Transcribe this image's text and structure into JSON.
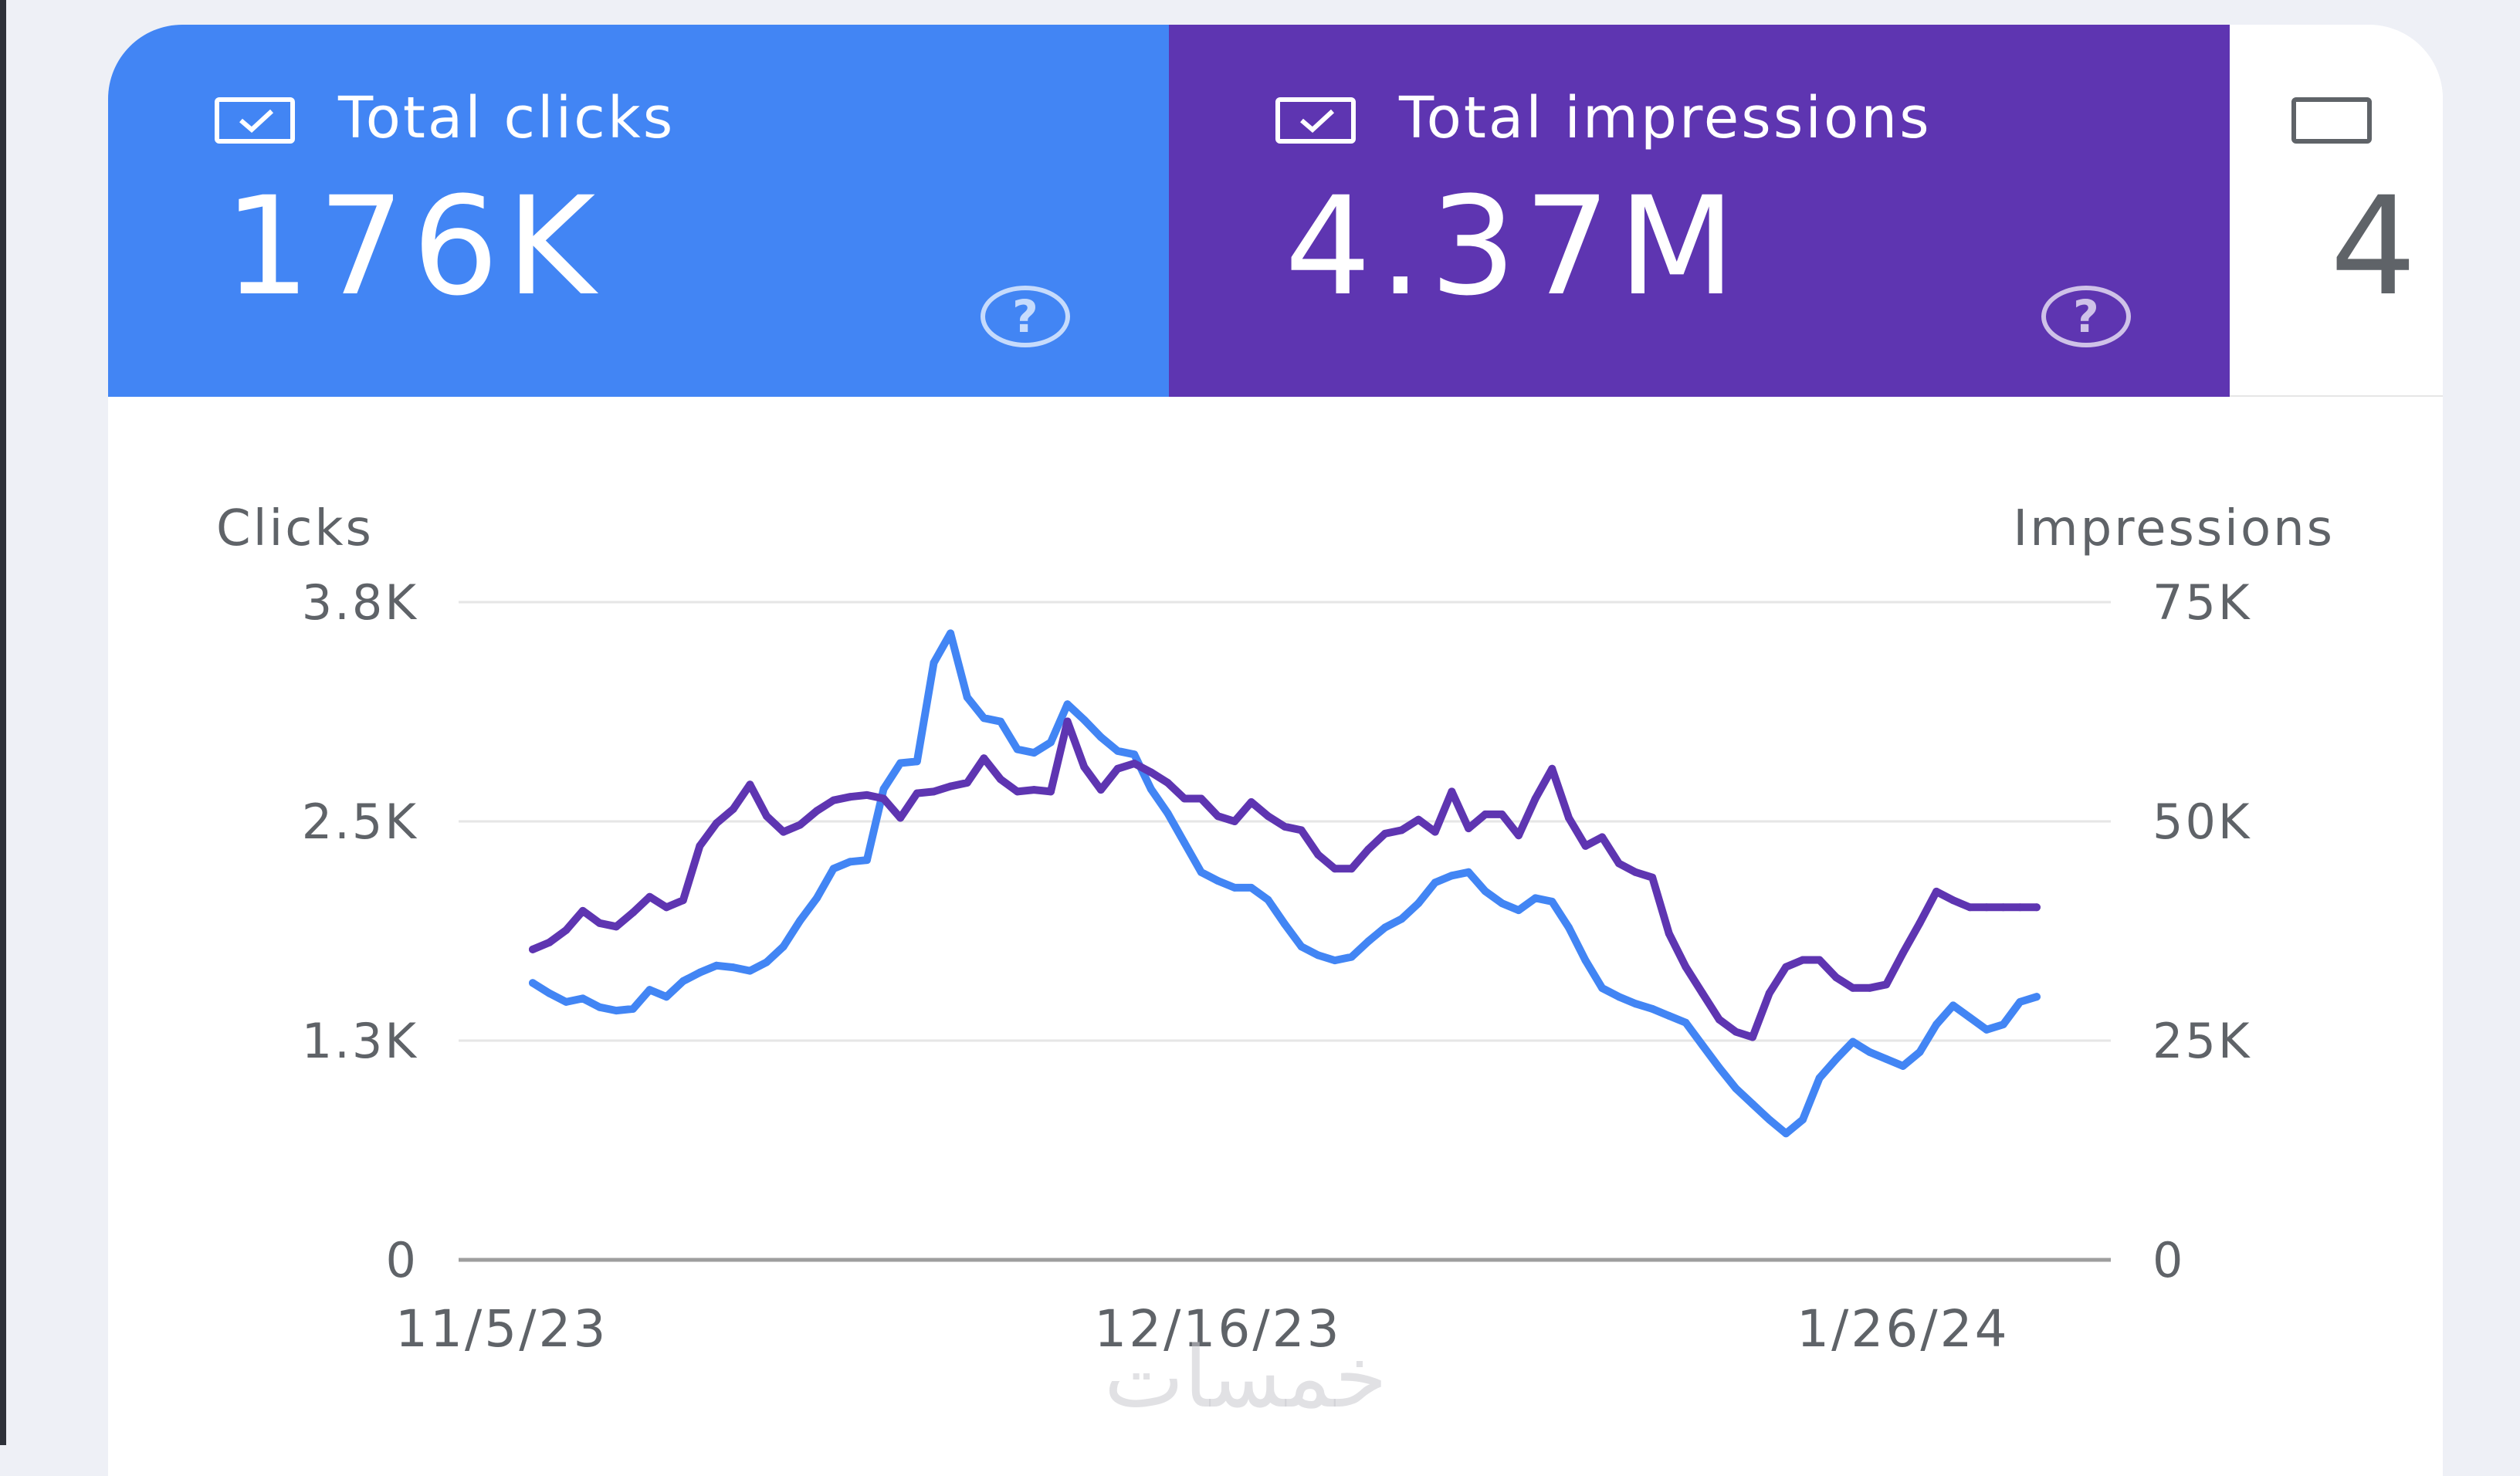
{
  "tiles": {
    "clicks": {
      "label": "Total clicks",
      "value": "176K",
      "checked": true,
      "color": "#4285f4"
    },
    "impressions": {
      "label": "Total impressions",
      "value": "4.37M",
      "checked": true,
      "color": "#5e35b1"
    },
    "ctr": {
      "label": "",
      "value": "4",
      "checked": false
    }
  },
  "help_symbol": "?",
  "watermark": "خمسات",
  "chart_data": {
    "type": "line",
    "x": [
      "11/5/23",
      "11/6/23",
      "11/7/23",
      "11/8/23",
      "11/9/23",
      "11/10/23",
      "11/11/23",
      "11/12/23",
      "11/13/23",
      "11/14/23",
      "11/15/23",
      "11/16/23",
      "11/17/23",
      "11/18/23",
      "11/19/23",
      "11/20/23",
      "11/21/23",
      "11/22/23",
      "11/23/23",
      "11/24/23",
      "11/25/23",
      "11/26/23",
      "11/27/23",
      "11/28/23",
      "11/29/23",
      "11/30/23",
      "12/1/23",
      "12/2/23",
      "12/3/23",
      "12/4/23",
      "12/5/23",
      "12/6/23",
      "12/7/23",
      "12/8/23",
      "12/9/23",
      "12/10/23",
      "12/11/23",
      "12/12/23",
      "12/13/23",
      "12/14/23",
      "12/15/23",
      "12/16/23",
      "12/17/23",
      "12/18/23",
      "12/19/23",
      "12/20/23",
      "12/21/23",
      "12/22/23",
      "12/23/23",
      "12/24/23",
      "12/25/23",
      "12/26/23",
      "12/27/23",
      "12/28/23",
      "12/29/23",
      "12/30/23",
      "12/31/23",
      "1/1/24",
      "1/2/24",
      "1/3/24",
      "1/4/24",
      "1/5/24",
      "1/6/24",
      "1/7/24",
      "1/8/24",
      "1/9/24",
      "1/10/24",
      "1/11/24",
      "1/12/24",
      "1/13/24",
      "1/14/24",
      "1/15/24",
      "1/16/24",
      "1/17/24",
      "1/18/24",
      "1/19/24",
      "1/20/24",
      "1/21/24",
      "1/22/24",
      "1/23/24",
      "1/24/24",
      "1/25/24",
      "1/26/24",
      "1/27/24",
      "1/28/24",
      "1/29/24",
      "1/30/24",
      "1/31/24",
      "2/1/24",
      "2/2/24",
      "2/3/24"
    ],
    "x_ticks": [
      "11/5/23",
      "12/16/23",
      "1/26/24"
    ],
    "y_left": {
      "label": "Clicks",
      "ticks": [
        "0",
        "1.3K",
        "2.5K",
        "3.8K"
      ],
      "max": 3800
    },
    "y_right": {
      "label": "Impressions",
      "ticks": [
        "0",
        "25K",
        "50K",
        "75K"
      ],
      "max": 75000
    },
    "grid": true,
    "series": [
      {
        "name": "Clicks",
        "axis": "left",
        "color": "#4285f4",
        "values": [
          1600,
          1540,
          1490,
          1510,
          1460,
          1440,
          1450,
          1560,
          1520,
          1610,
          1660,
          1700,
          1690,
          1670,
          1720,
          1810,
          1960,
          2090,
          2260,
          2300,
          2310,
          2720,
          2870,
          2880,
          3450,
          3620,
          3250,
          3130,
          3110,
          2950,
          2930,
          2990,
          3210,
          3120,
          3020,
          2940,
          2920,
          2720,
          2580,
          2410,
          2240,
          2190,
          2150,
          2150,
          2080,
          1940,
          1810,
          1760,
          1730,
          1750,
          1840,
          1920,
          1970,
          2060,
          2180,
          2220,
          2240,
          2130,
          2060,
          2020,
          2090,
          2070,
          1920,
          1730,
          1570,
          1520,
          1480,
          1450,
          1410,
          1370,
          1240,
          1110,
          990,
          900,
          810,
          730,
          810,
          1050,
          1160,
          1260,
          1200,
          1160,
          1120,
          1200,
          1360,
          1470,
          1400,
          1330,
          1360,
          1490,
          1520
        ]
      },
      {
        "name": "Impressions",
        "axis": "right",
        "color": "#5e35b1",
        "values": [
          35400,
          36200,
          37600,
          39800,
          38400,
          38000,
          39600,
          41400,
          40200,
          41000,
          47200,
          49800,
          51400,
          54200,
          50600,
          48800,
          49600,
          51200,
          52400,
          52800,
          53000,
          52600,
          50400,
          53200,
          53400,
          54000,
          54400,
          57200,
          54800,
          53400,
          53600,
          53400,
          61400,
          56200,
          53600,
          56000,
          56600,
          55600,
          54400,
          52600,
          52600,
          50600,
          50000,
          52200,
          50600,
          49400,
          49000,
          46200,
          44600,
          44600,
          46800,
          48600,
          49000,
          50200,
          48800,
          53400,
          49200,
          50800,
          50800,
          48400,
          52600,
          56000,
          50400,
          47200,
          48200,
          45200,
          44200,
          43600,
          37200,
          33400,
          30400,
          27400,
          26000,
          25400,
          30400,
          33400,
          34200,
          34200,
          32200,
          31000,
          31000,
          31400,
          35000,
          38400,
          42000,
          41000,
          40200,
          40200,
          40200,
          40200,
          40200
        ]
      }
    ]
  }
}
